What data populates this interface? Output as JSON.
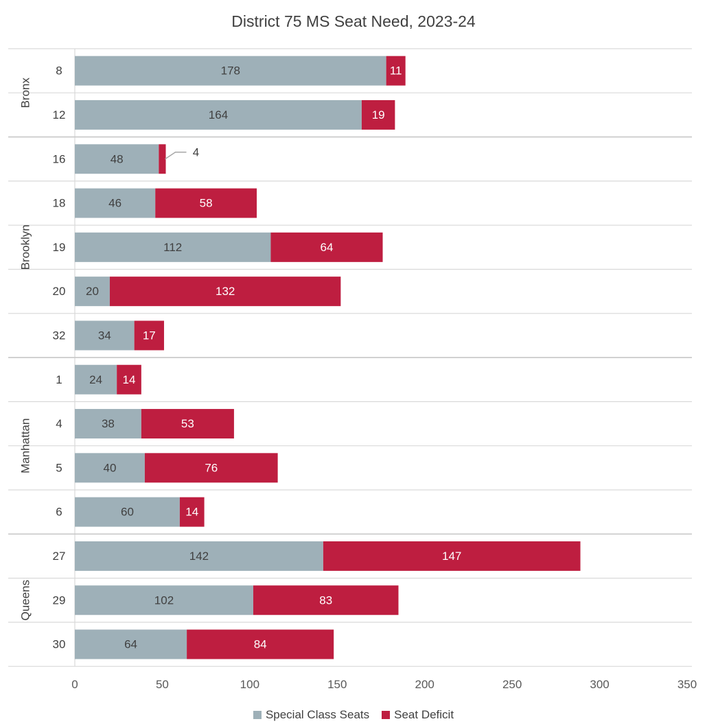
{
  "chart_data": {
    "type": "bar",
    "orientation": "horizontal",
    "stacked": true,
    "title": "District 75 MS Seat Need, 2023-24",
    "xlim": [
      0,
      350
    ],
    "xticks": [
      "0",
      "50",
      "100",
      "150",
      "200",
      "250",
      "300",
      "350"
    ],
    "xtick_values": [
      0,
      50,
      100,
      150,
      200,
      250,
      300,
      350
    ],
    "groups": [
      {
        "name": "Bronx",
        "categories": [
          "8",
          "12"
        ]
      },
      {
        "name": "Brooklyn",
        "categories": [
          "16",
          "18",
          "19",
          "20",
          "32"
        ]
      },
      {
        "name": "Manhattan",
        "categories": [
          "1",
          "4",
          "5",
          "6"
        ]
      },
      {
        "name": "Queens",
        "categories": [
          "27",
          "29",
          "30"
        ]
      }
    ],
    "categories": [
      "8",
      "12",
      "16",
      "18",
      "19",
      "20",
      "32",
      "1",
      "4",
      "5",
      "6",
      "27",
      "29",
      "30"
    ],
    "series": [
      {
        "name": "Special Class Seats",
        "color": "#9eb0b8",
        "label_color": "#404040",
        "values": [
          178,
          164,
          48,
          46,
          112,
          20,
          34,
          24,
          38,
          40,
          60,
          142,
          102,
          64
        ]
      },
      {
        "name": "Seat Deficit",
        "color": "#be1e40",
        "label_color": "#ffffff",
        "values": [
          11,
          19,
          4,
          58,
          64,
          132,
          17,
          14,
          53,
          76,
          14,
          147,
          83,
          84
        ]
      }
    ],
    "outside_label_rows": [
      2
    ],
    "grid": "horizontal separators",
    "legend_position": "bottom"
  }
}
